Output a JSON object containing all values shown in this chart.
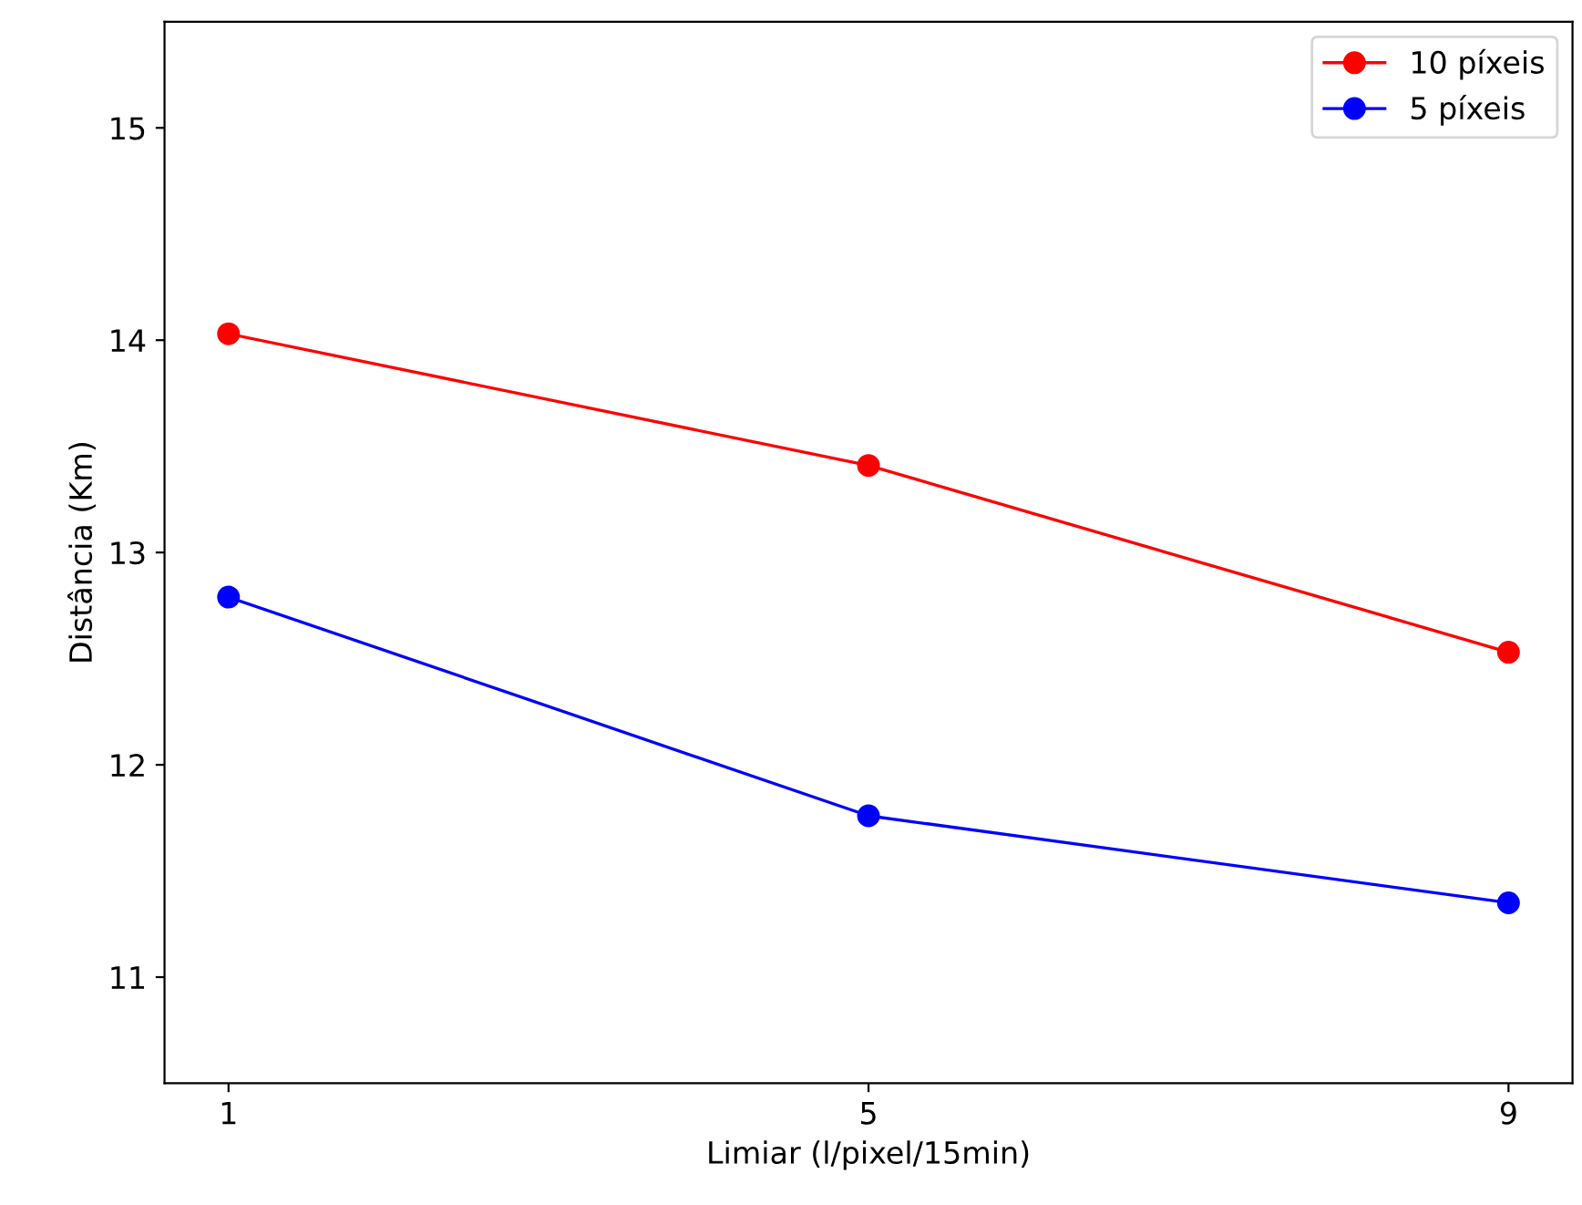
{
  "chart_data": {
    "type": "line",
    "xlabel": "Limiar (l/pixel/15min)",
    "ylabel": "Distância (Km)",
    "x": [
      1,
      5,
      9
    ],
    "series": [
      {
        "name": "10 píxeis",
        "color": "#ff0000",
        "values": [
          14.03,
          13.41,
          12.53
        ]
      },
      {
        "name": "5 píxeis",
        "color": "#0000ff",
        "values": [
          12.79,
          11.76,
          11.35
        ]
      }
    ],
    "xlim": [
      0.6,
      9.4
    ],
    "xticks": [
      1,
      5,
      9
    ],
    "ylim": [
      10.5,
      15.5
    ],
    "yticks": [
      11,
      12,
      13,
      14,
      15
    ],
    "marker": "circle",
    "line_style": "solid",
    "legend": "top right",
    "grid": false
  }
}
